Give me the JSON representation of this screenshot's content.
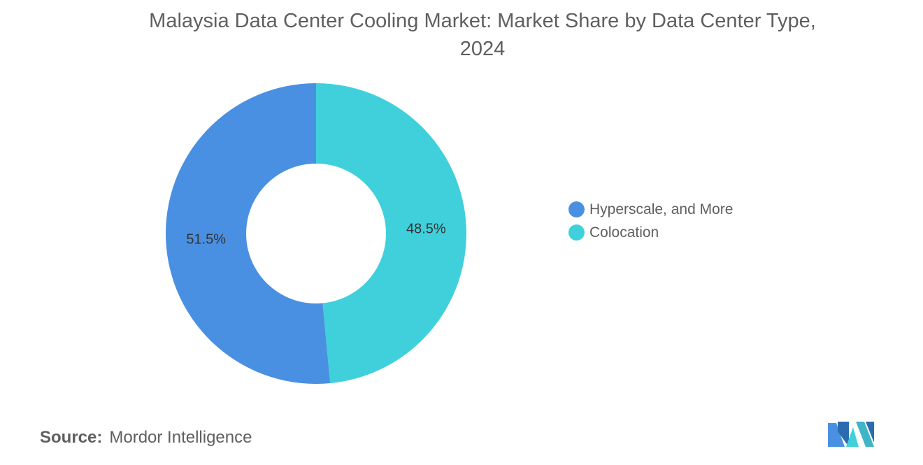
{
  "title_line1": "Malaysia Data Center Cooling Market: Market Share by Data Center Type,",
  "title_line2": "2024",
  "source_label": "Source:",
  "source_value": "Mordor Intelligence",
  "chart_data": {
    "type": "pie",
    "variant": "donut",
    "title": "Malaysia Data Center Cooling Market: Market Share by Data Center Type, 2024",
    "unit": "%",
    "series": [
      {
        "name": "Hyperscale, and More",
        "value": 51.5,
        "label": "51.5%",
        "color": "#4a90e2"
      },
      {
        "name": "Colocation",
        "value": 48.5,
        "label": "48.5%",
        "color": "#40d0dc"
      }
    ],
    "legend_position": "right"
  }
}
